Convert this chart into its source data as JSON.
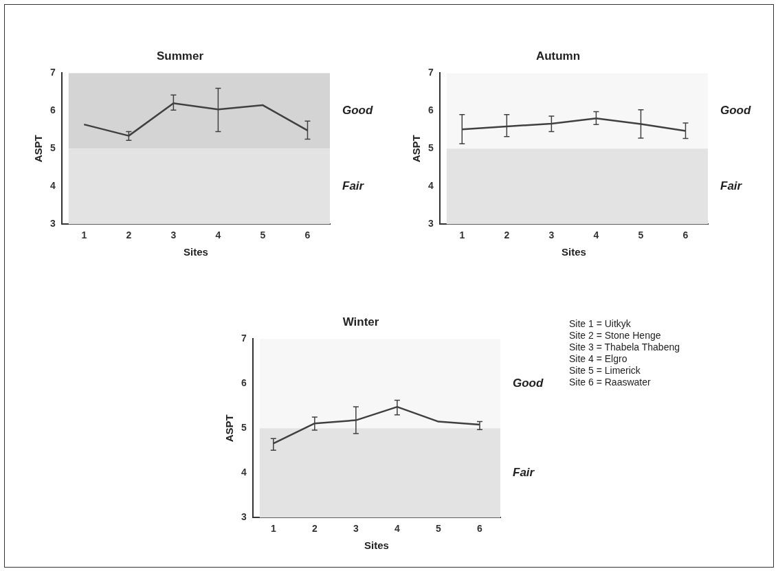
{
  "chart_data": [
    {
      "type": "line",
      "title": "Summer",
      "xlabel": "Sites",
      "ylabel": "ASPT",
      "categories": [
        "1",
        "2",
        "3",
        "4",
        "5",
        "6"
      ],
      "series": [
        {
          "color": "#404040",
          "values": [
            5.64,
            5.34,
            6.2,
            6.04,
            6.15,
            5.48
          ],
          "errors": [
            null,
            [
              5.22,
              5.45
            ],
            [
              6.02,
              6.42
            ],
            [
              5.45,
              6.6
            ],
            null,
            [
              5.25,
              5.73
            ]
          ]
        }
      ],
      "ylim": [
        3,
        7
      ],
      "yticks": [
        3,
        4,
        5,
        6,
        7
      ],
      "grid": false,
      "legend": false,
      "bands": [
        {
          "axis": "y",
          "from": 5,
          "to": 7,
          "label": "Good",
          "color": "#d4d4d4"
        },
        {
          "axis": "y",
          "from": 3,
          "to": 5,
          "label": "Fair",
          "color": "#e3e3e3"
        }
      ]
    },
    {
      "type": "line",
      "title": "Autumn",
      "xlabel": "Sites",
      "ylabel": "ASPT",
      "categories": [
        "1",
        "2",
        "3",
        "4",
        "5",
        "6"
      ],
      "series": [
        {
          "color": "#404040",
          "values": [
            5.51,
            5.59,
            5.66,
            5.8,
            5.65,
            5.47
          ],
          "errors": [
            [
              5.13,
              5.9
            ],
            [
              5.32,
              5.9
            ],
            [
              5.45,
              5.86
            ],
            [
              5.64,
              5.98
            ],
            [
              5.28,
              6.03
            ],
            [
              5.27,
              5.68
            ]
          ]
        }
      ],
      "ylim": [
        3,
        7
      ],
      "yticks": [
        3,
        4,
        5,
        6,
        7
      ],
      "grid": false,
      "legend": false,
      "bands": [
        {
          "axis": "y",
          "from": 5,
          "to": 7,
          "label": "Good",
          "color": "#f7f7f7"
        },
        {
          "axis": "y",
          "from": 3,
          "to": 5,
          "label": "Fair",
          "color": "#e3e3e3"
        }
      ]
    },
    {
      "type": "line",
      "title": "Winter",
      "xlabel": "Sites",
      "ylabel": "ASPT",
      "categories": [
        "1",
        "2",
        "3",
        "4",
        "5",
        "6"
      ],
      "series": [
        {
          "color": "#404040",
          "values": [
            4.66,
            5.11,
            5.18,
            5.48,
            5.15,
            5.08
          ],
          "errors": [
            [
              4.51,
              4.77
            ],
            [
              4.96,
              5.25
            ],
            [
              4.88,
              5.48
            ],
            [
              5.3,
              5.63
            ],
            null,
            [
              4.97,
              5.15
            ]
          ]
        }
      ],
      "ylim": [
        3,
        7
      ],
      "yticks": [
        3,
        4,
        5,
        6,
        7
      ],
      "grid": false,
      "legend": false,
      "bands": [
        {
          "axis": "y",
          "from": 5,
          "to": 7,
          "label": "Good",
          "color": "#f7f7f7"
        },
        {
          "axis": "y",
          "from": 3,
          "to": 5,
          "label": "Fair",
          "color": "#e3e3e3"
        }
      ],
      "annotations": [
        "Site 1 = Uitkyk",
        "Site 2 = Stone Henge",
        "Site 3 = Thabela Thabeng",
        "Site 4 = Elgro",
        "Site 5 = Limerick",
        "Site 6 = Raaswater"
      ]
    }
  ]
}
